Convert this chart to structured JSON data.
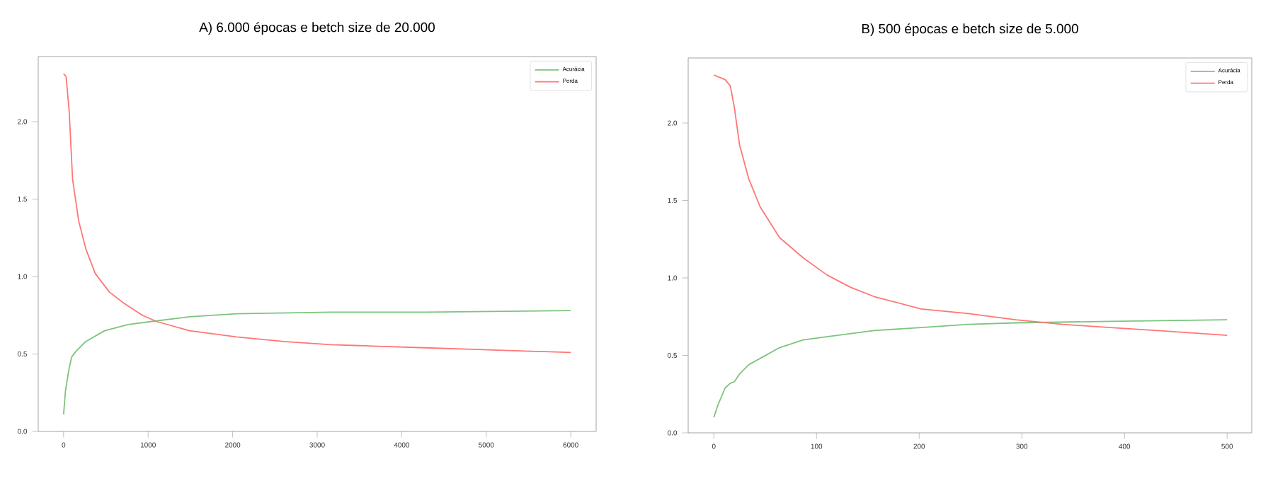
{
  "chart_data": [
    {
      "type": "line",
      "title": "A)  6.000 épocas e betch size de 20.000",
      "legend": "top right",
      "xlim": [
        -300,
        6300
      ],
      "ylim": [
        0,
        2.42
      ],
      "xticks": [
        0,
        1000,
        2000,
        3000,
        4000,
        5000,
        6000
      ],
      "yticks": [
        {
          "value": 0,
          "label": "0.0"
        },
        {
          "value": 0.5,
          "label": "0.5"
        },
        {
          "value": 1,
          "label": "1.0"
        },
        {
          "value": 1.5,
          "label": "1.5"
        },
        {
          "value": 2,
          "label": "2.0"
        }
      ],
      "series": [
        {
          "name": "Acurácia",
          "color": "#7cc47c",
          "x": [
            0,
            22,
            39,
            67,
            95,
            151,
            262,
            485,
            764,
            1043,
            1489,
            2047,
            3162,
            4278,
            6000
          ],
          "values": [
            0.11,
            0.26,
            0.32,
            0.41,
            0.48,
            0.52,
            0.58,
            0.65,
            0.69,
            0.71,
            0.74,
            0.76,
            0.77,
            0.77,
            0.78
          ]
        },
        {
          "name": "Perda",
          "color": "#ff7676",
          "x": [
            0,
            30,
            67,
            106,
            178,
            262,
            374,
            541,
            708,
            931,
            1099,
            1489,
            2047,
            2605,
            3162,
            3720,
            4278,
            4835,
            5393,
            6000
          ],
          "values": [
            2.31,
            2.29,
            2.06,
            1.63,
            1.36,
            1.18,
            1.02,
            0.9,
            0.83,
            0.75,
            0.71,
            0.65,
            0.61,
            0.58,
            0.56,
            0.55,
            0.54,
            0.53,
            0.52,
            0.51
          ]
        }
      ]
    },
    {
      "type": "line",
      "title": "B)  500 épocas e betch size de 5.000",
      "legend": "top right",
      "xlim": [
        -25,
        524
      ],
      "ylim": [
        0,
        2.42
      ],
      "xticks": [
        0,
        100,
        200,
        300,
        400,
        500
      ],
      "yticks": [
        {
          "value": 0,
          "label": "0.0"
        },
        {
          "value": 0.5,
          "label": "0.5"
        },
        {
          "value": 1,
          "label": "1.0"
        },
        {
          "value": 1.5,
          "label": "1.5"
        },
        {
          "value": 2,
          "label": "2.0"
        }
      ],
      "series": [
        {
          "name": "Acurácia",
          "color": "#7cc47c",
          "x": [
            0,
            4,
            11,
            16,
            20,
            25,
            34,
            45,
            64,
            87,
            110,
            156,
            202,
            248,
            294,
            386,
            500
          ],
          "values": [
            0.1,
            0.18,
            0.29,
            0.32,
            0.33,
            0.38,
            0.44,
            0.48,
            0.55,
            0.6,
            0.62,
            0.66,
            0.68,
            0.7,
            0.71,
            0.72,
            0.73
          ]
        },
        {
          "name": "Perda",
          "color": "#ff7676",
          "x": [
            0,
            11,
            16,
            20,
            25,
            34,
            45,
            64,
            87,
            110,
            133,
            156,
            202,
            248,
            294,
            340,
            386,
            432,
            500
          ],
          "values": [
            2.31,
            2.28,
            2.24,
            2.1,
            1.86,
            1.64,
            1.46,
            1.26,
            1.13,
            1.02,
            0.94,
            0.88,
            0.8,
            0.77,
            0.73,
            0.7,
            0.68,
            0.66,
            0.63
          ]
        }
      ]
    }
  ]
}
